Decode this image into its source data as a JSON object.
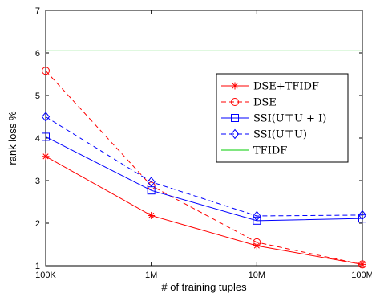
{
  "chart_data": {
    "type": "line",
    "title": "",
    "xlabel": "# of training tuples",
    "ylabel": "rank loss %",
    "x_scale": "log",
    "categories": [
      "100K",
      "1M",
      "10M",
      "100M"
    ],
    "x": [
      100000,
      1000000,
      10000000,
      100000000
    ],
    "xlim": [
      100000,
      100000000
    ],
    "ylim": [
      1,
      7
    ],
    "yticks": [
      1,
      2,
      3,
      4,
      5,
      6,
      7
    ],
    "grid": false,
    "legend_position": "right",
    "series": [
      {
        "name": "DSE+TFIDF",
        "values": [
          3.57,
          2.18,
          1.47,
          1.03
        ],
        "color": "#ff0000",
        "dash": "solid",
        "marker": "star"
      },
      {
        "name": "DSE",
        "values": [
          5.58,
          2.88,
          1.55,
          1.03
        ],
        "color": "#ff0000",
        "dash": "dashed",
        "marker": "circle"
      },
      {
        "name": "SSI(U⊤U + I)",
        "values": [
          4.03,
          2.77,
          2.06,
          2.11
        ],
        "color": "#0000ff",
        "dash": "solid",
        "marker": "square"
      },
      {
        "name": "SSI(U⊤U)",
        "values": [
          4.5,
          2.97,
          2.17,
          2.19
        ],
        "color": "#0000ff",
        "dash": "dashed",
        "marker": "diamond"
      },
      {
        "name": "TFIDF",
        "values": [
          6.05,
          6.05,
          6.05,
          6.05
        ],
        "color": "#00cc00",
        "dash": "solid",
        "marker": "none"
      }
    ]
  }
}
